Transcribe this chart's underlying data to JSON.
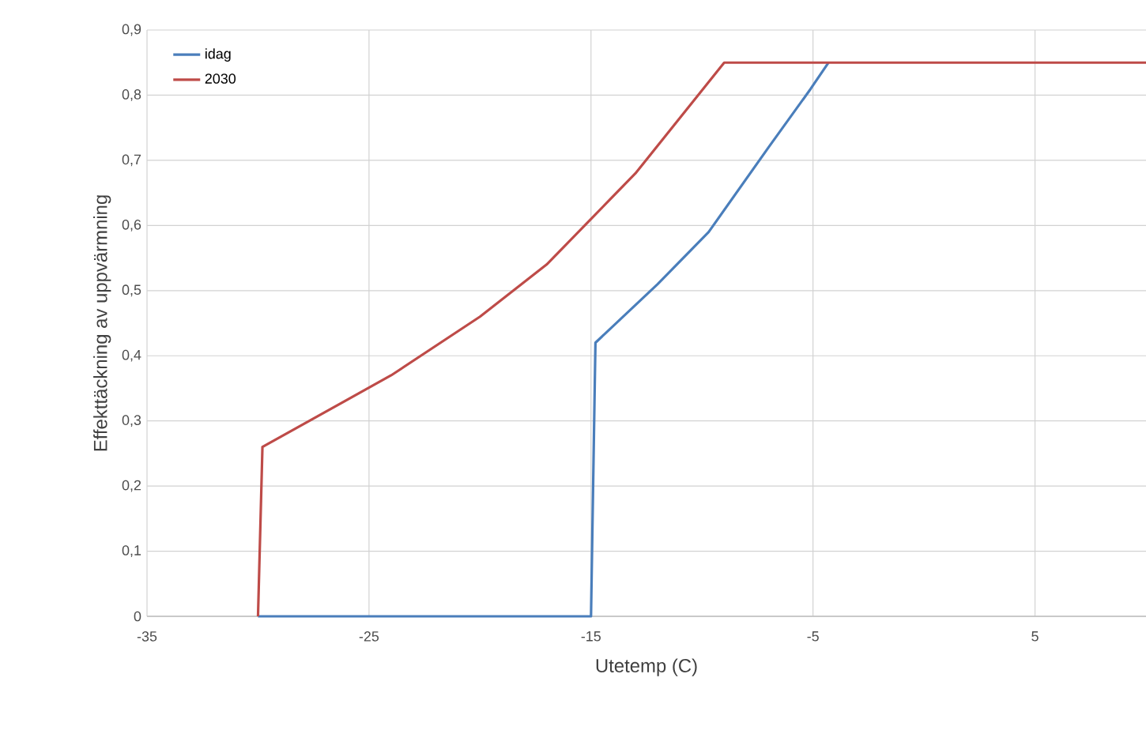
{
  "chart_data": {
    "type": "line",
    "xlabel": "Utetemp (C)",
    "ylabel": "Effekttäckning av uppvärmning",
    "xlim": [
      -35,
      10
    ],
    "xticks": [
      -35,
      -25,
      -15,
      -5,
      5
    ],
    "ylim": [
      0,
      0.9
    ],
    "yticks": [
      {
        "value": 0,
        "label": "0"
      },
      {
        "value": 0.1,
        "label": "0,1"
      },
      {
        "value": 0.2,
        "label": "0,2"
      },
      {
        "value": 0.3,
        "label": "0,3"
      },
      {
        "value": 0.4,
        "label": "0,4"
      },
      {
        "value": 0.5,
        "label": "0,5"
      },
      {
        "value": 0.6,
        "label": "0,6"
      },
      {
        "value": 0.7,
        "label": "0,7"
      },
      {
        "value": 0.8,
        "label": "0,8"
      },
      {
        "value": 0.9,
        "label": "0,9"
      }
    ],
    "grid": true,
    "legend": "top left",
    "marker": "none",
    "line_style": "solid",
    "series": [
      {
        "name": "idag",
        "color": "#4a7ebb",
        "x": [
          -30,
          -15,
          -14.8,
          -12,
          -9.7,
          -7,
          -5.1,
          -4.3
        ],
        "values": [
          0,
          0,
          0.42,
          0.51,
          0.59,
          0.72,
          0.81,
          0.85
        ]
      },
      {
        "name": "2030",
        "color": "#be4b48",
        "x": [
          -30,
          -29.8,
          -24,
          -20,
          -17,
          -15,
          -13,
          -9,
          10
        ],
        "values": [
          0,
          0.26,
          0.37,
          0.46,
          0.54,
          0.61,
          0.68,
          0.85,
          0.85
        ]
      }
    ]
  }
}
